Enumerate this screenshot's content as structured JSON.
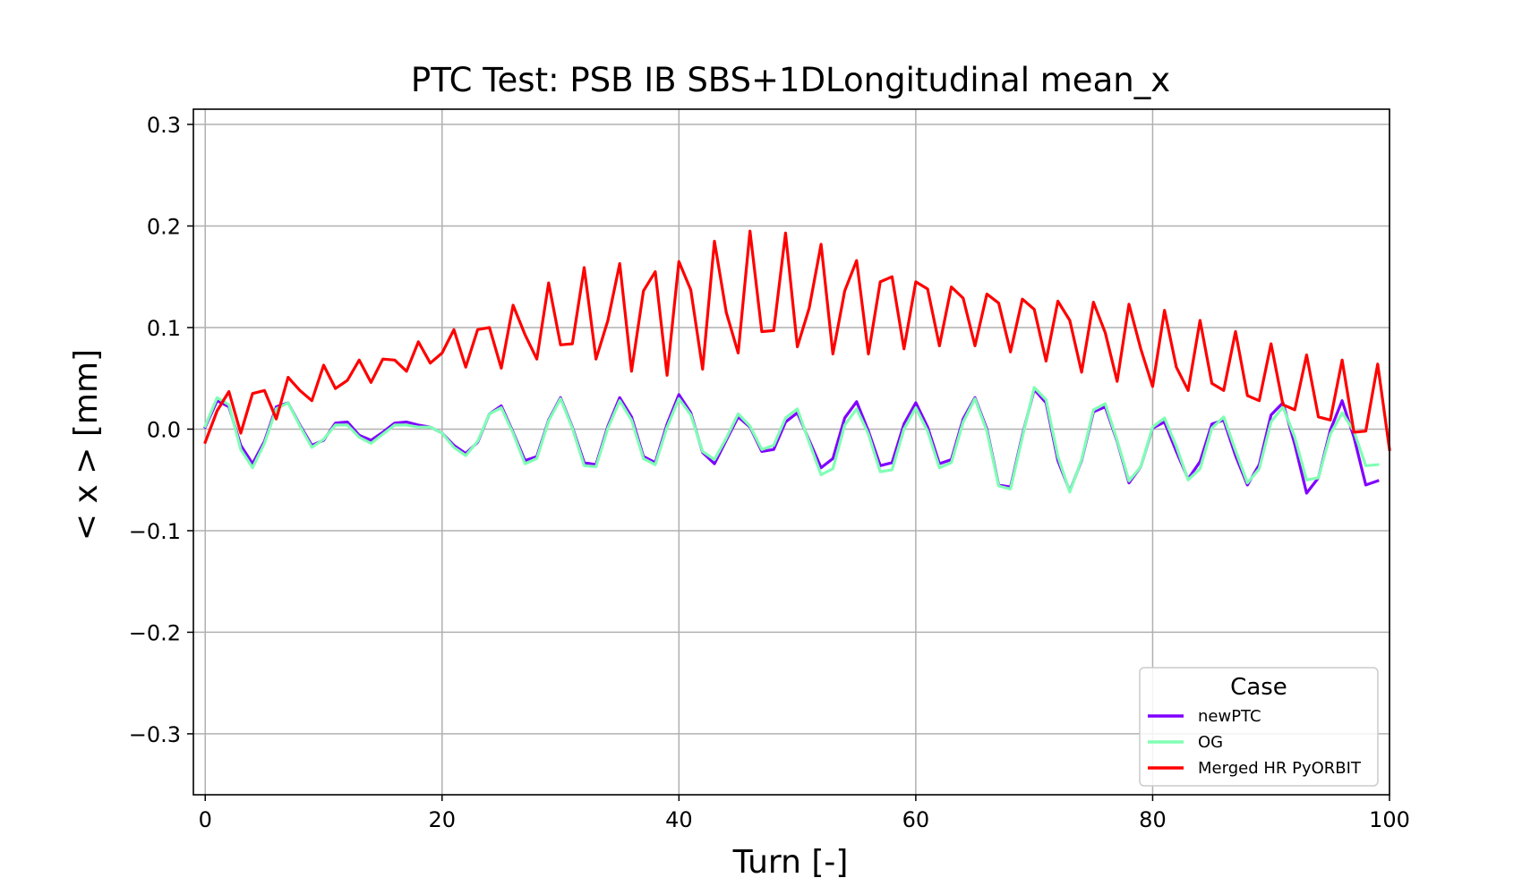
{
  "chart_data": {
    "type": "line",
    "title": "PTC Test: PSB IB SBS+1DLongitudinal mean_x",
    "xlabel": "Turn [-]",
    "ylabel": "< x > [mm]",
    "xlim": [
      -1,
      100
    ],
    "ylim": [
      -0.36,
      0.315
    ],
    "xticks": [
      0,
      20,
      40,
      60,
      80,
      100
    ],
    "xtick_labels": [
      "0",
      "20",
      "40",
      "60",
      "80",
      "100"
    ],
    "yticks": [
      0.3,
      0.2,
      0.1,
      0.0,
      -0.1,
      -0.2,
      -0.3
    ],
    "ytick_labels": [
      "0.3",
      "0.2",
      "0.1",
      "0.0",
      "−0.1",
      "−0.2",
      "−0.3"
    ],
    "grid": true,
    "legend": {
      "title": "Case",
      "position": "lower-right"
    },
    "series": [
      {
        "name": "newPTC",
        "color": "#8000ff",
        "values": [
          0.002,
          0.028,
          0.022,
          -0.016,
          -0.034,
          -0.012,
          0.022,
          0.026,
          0.004,
          -0.016,
          -0.011,
          0.006,
          0.007,
          -0.006,
          -0.011,
          -0.003,
          0.006,
          0.007,
          0.004,
          0.002,
          -0.004,
          -0.016,
          -0.024,
          -0.013,
          0.015,
          0.023,
          -0.003,
          -0.031,
          -0.027,
          0.009,
          0.031,
          0.002,
          -0.033,
          -0.035,
          0.003,
          0.031,
          0.012,
          -0.027,
          -0.033,
          0.005,
          0.034,
          0.016,
          -0.023,
          -0.034,
          -0.011,
          0.012,
          0.002,
          -0.022,
          -0.02,
          0.007,
          0.016,
          -0.011,
          -0.038,
          -0.029,
          0.011,
          0.027,
          -0.002,
          -0.036,
          -0.033,
          0.005,
          0.026,
          0.002,
          -0.034,
          -0.03,
          0.01,
          0.031,
          0.0,
          -0.055,
          -0.057,
          -0.006,
          0.039,
          0.026,
          -0.031,
          -0.061,
          -0.031,
          0.017,
          0.022,
          -0.012,
          -0.053,
          -0.037,
          0.001,
          0.007,
          -0.022,
          -0.049,
          -0.032,
          0.005,
          0.009,
          -0.026,
          -0.055,
          -0.035,
          0.014,
          0.026,
          -0.015,
          -0.063,
          -0.048,
          -0.001,
          0.028,
          -0.008,
          -0.055,
          -0.051
        ]
      },
      {
        "name": "OG",
        "color": "#80ffb4",
        "values": [
          0.003,
          0.031,
          0.024,
          -0.02,
          -0.038,
          -0.014,
          0.02,
          0.026,
          0.003,
          -0.018,
          -0.01,
          0.004,
          0.004,
          -0.008,
          -0.014,
          -0.005,
          0.004,
          0.004,
          0.002,
          0.002,
          -0.004,
          -0.018,
          -0.026,
          -0.012,
          0.015,
          0.021,
          -0.004,
          -0.034,
          -0.029,
          0.008,
          0.03,
          0.001,
          -0.036,
          -0.037,
          0.001,
          0.028,
          0.009,
          -0.029,
          -0.035,
          0.002,
          0.03,
          0.014,
          -0.022,
          -0.03,
          -0.009,
          0.015,
          0.003,
          -0.02,
          -0.016,
          0.011,
          0.02,
          -0.013,
          -0.045,
          -0.039,
          0.004,
          0.02,
          -0.005,
          -0.042,
          -0.04,
          0.0,
          0.021,
          -0.002,
          -0.038,
          -0.033,
          0.007,
          0.03,
          -0.002,
          -0.056,
          -0.059,
          -0.008,
          0.041,
          0.029,
          -0.027,
          -0.062,
          -0.03,
          0.019,
          0.025,
          -0.011,
          -0.051,
          -0.037,
          0.002,
          0.011,
          -0.017,
          -0.05,
          -0.039,
          0.001,
          0.012,
          -0.021,
          -0.053,
          -0.039,
          0.007,
          0.022,
          -0.008,
          -0.05,
          -0.048,
          -0.005,
          0.016,
          -0.002,
          -0.036,
          -0.035
        ]
      },
      {
        "name": "Merged HR PyORBIT",
        "color": "#ff0000",
        "values": [
          -0.013,
          0.018,
          0.037,
          -0.004,
          0.035,
          0.038,
          0.01,
          0.051,
          0.038,
          0.028,
          0.063,
          0.04,
          0.048,
          0.068,
          0.046,
          0.069,
          0.068,
          0.057,
          0.086,
          0.065,
          0.075,
          0.098,
          0.061,
          0.098,
          0.1,
          0.06,
          0.122,
          0.093,
          0.069,
          0.144,
          0.083,
          0.084,
          0.159,
          0.069,
          0.107,
          0.163,
          0.057,
          0.136,
          0.155,
          0.053,
          0.165,
          0.137,
          0.059,
          0.185,
          0.115,
          0.075,
          0.195,
          0.096,
          0.097,
          0.193,
          0.081,
          0.119,
          0.182,
          0.074,
          0.136,
          0.166,
          0.074,
          0.145,
          0.15,
          0.079,
          0.145,
          0.138,
          0.082,
          0.14,
          0.129,
          0.082,
          0.133,
          0.124,
          0.076,
          0.128,
          0.118,
          0.067,
          0.126,
          0.107,
          0.056,
          0.125,
          0.095,
          0.047,
          0.123,
          0.079,
          0.042,
          0.117,
          0.061,
          0.038,
          0.107,
          0.045,
          0.038,
          0.096,
          0.033,
          0.028,
          0.084,
          0.024,
          0.019,
          0.073,
          0.012,
          0.009,
          0.068,
          -0.003,
          -0.002,
          0.064,
          -0.02
        ]
      }
    ]
  }
}
